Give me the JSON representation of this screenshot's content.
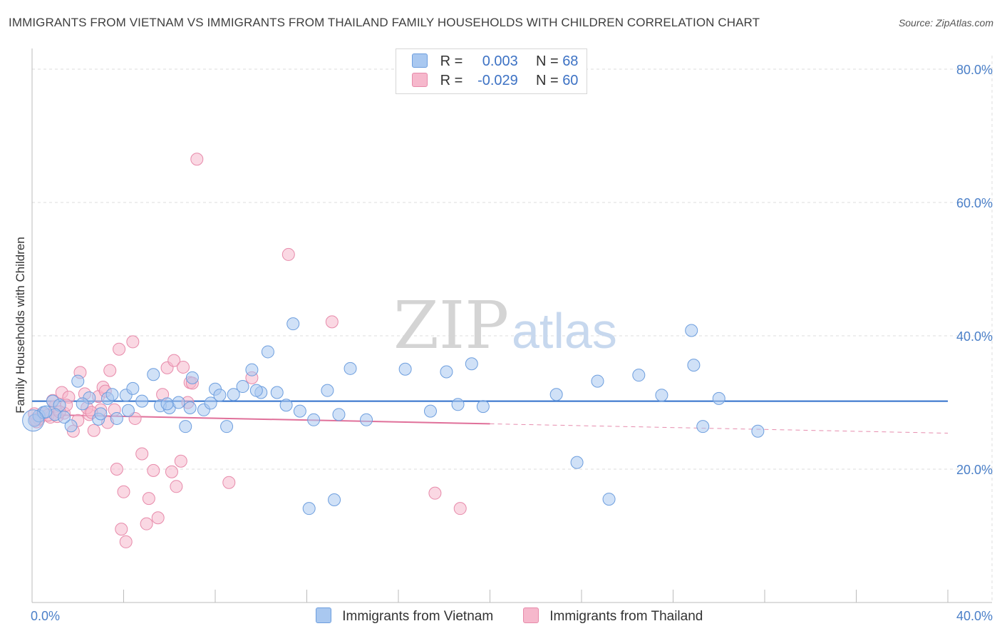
{
  "title": "IMMIGRANTS FROM VIETNAM VS IMMIGRANTS FROM THAILAND FAMILY HOUSEHOLDS WITH CHILDREN CORRELATION CHART",
  "source": "Source: ZipAtlas.com",
  "watermark": {
    "zip": "ZIP",
    "atlas": "atlas"
  },
  "legend": {
    "vietnam": {
      "r_label": "R =",
      "r_value": "0.003",
      "n_label": "N =",
      "n_value": "68"
    },
    "thailand": {
      "r_label": "R =",
      "r_value": "-0.029",
      "n_label": "N =",
      "n_value": "60"
    }
  },
  "colors": {
    "vietnam_fill": "#a9c8f0",
    "vietnam_stroke": "#6d9ede",
    "vietnam_line": "#2f6fcb",
    "thailand_fill": "#f6b8cc",
    "thailand_stroke": "#e78aaa",
    "thailand_line": "#e0709a",
    "tick_text": "#4a7fc8",
    "grid": "#dddddd"
  },
  "chart_data": {
    "type": "scatter",
    "title": "IMMIGRANTS FROM VIETNAM VS IMMIGRANTS FROM THAILAND FAMILY HOUSEHOLDS WITH CHILDREN CORRELATION CHART",
    "xlabel": "",
    "ylabel": "Family Households with Children",
    "xlim": [
      0,
      40
    ],
    "ylim": [
      0,
      80
    ],
    "x_tick_labels": [
      "0.0%",
      "40.0%"
    ],
    "y_ticks": [
      20,
      40,
      60,
      80
    ],
    "y_tick_labels": [
      "20.0%",
      "40.0%",
      "60.0%",
      "80.0%"
    ],
    "grid": true,
    "legend_position": "top-center",
    "series": [
      {
        "name": "Immigrants from Vietnam",
        "color": "#a9c8f0",
        "trend": {
          "x": [
            0,
            40
          ],
          "y": [
            30.2,
            30.2
          ]
        },
        "points": [
          [
            0.1,
            27.3
          ],
          [
            0.3,
            28.0
          ],
          [
            0.5,
            28.5
          ],
          [
            0.9,
            30.2
          ],
          [
            1.2,
            29.6
          ],
          [
            1.7,
            26.5
          ],
          [
            2.0,
            33.2
          ],
          [
            2.5,
            30.7
          ],
          [
            2.9,
            27.5
          ],
          [
            3.3,
            30.6
          ],
          [
            3.5,
            31.2
          ],
          [
            3.7,
            27.6
          ],
          [
            4.1,
            31.1
          ],
          [
            4.4,
            32.1
          ],
          [
            4.8,
            30.2
          ],
          [
            5.3,
            34.2
          ],
          [
            5.6,
            29.5
          ],
          [
            6.0,
            29.2
          ],
          [
            6.4,
            30.0
          ],
          [
            6.7,
            26.4
          ],
          [
            7.0,
            33.7
          ],
          [
            7.5,
            28.9
          ],
          [
            7.8,
            29.9
          ],
          [
            8.0,
            32.0
          ],
          [
            8.2,
            31.1
          ],
          [
            8.5,
            26.4
          ],
          [
            8.8,
            31.2
          ],
          [
            9.2,
            32.4
          ],
          [
            9.6,
            34.9
          ],
          [
            10.0,
            31.5
          ],
          [
            10.3,
            37.6
          ],
          [
            10.7,
            31.5
          ],
          [
            11.1,
            29.6
          ],
          [
            11.4,
            41.8
          ],
          [
            11.7,
            28.7
          ],
          [
            12.3,
            27.4
          ],
          [
            12.9,
            31.8
          ],
          [
            13.4,
            28.2
          ],
          [
            13.9,
            35.1
          ],
          [
            14.6,
            27.4
          ],
          [
            16.3,
            35.0
          ],
          [
            17.4,
            28.7
          ],
          [
            18.1,
            34.6
          ],
          [
            18.6,
            29.7
          ],
          [
            19.2,
            35.8
          ],
          [
            19.7,
            29.4
          ],
          [
            22.9,
            31.2
          ],
          [
            23.8,
            21.0
          ],
          [
            24.7,
            33.2
          ],
          [
            25.2,
            15.5
          ],
          [
            26.5,
            34.1
          ],
          [
            27.5,
            31.1
          ],
          [
            28.8,
            40.8
          ],
          [
            28.9,
            35.6
          ],
          [
            29.3,
            26.4
          ],
          [
            30.0,
            30.6
          ],
          [
            31.7,
            25.7
          ],
          [
            12.1,
            14.1
          ],
          [
            13.2,
            15.4
          ],
          [
            1.0,
            28.2
          ],
          [
            2.2,
            29.8
          ],
          [
            6.9,
            29.2
          ],
          [
            4.2,
            28.8
          ],
          [
            5.9,
            29.8
          ],
          [
            0.6,
            28.6
          ],
          [
            1.4,
            27.8
          ],
          [
            3.0,
            28.3
          ],
          [
            9.8,
            31.8
          ]
        ]
      },
      {
        "name": "Immigrants from Thailand",
        "color": "#f6b8cc",
        "trend": {
          "x": [
            0,
            20
          ],
          "y": [
            28.2,
            26.8
          ]
        },
        "trend_dashed": {
          "x": [
            20,
            40
          ],
          "y": [
            26.8,
            25.4
          ]
        },
        "points": [
          [
            0.1,
            28.3
          ],
          [
            0.2,
            27.1
          ],
          [
            0.4,
            28.0
          ],
          [
            0.5,
            28.3
          ],
          [
            0.8,
            27.8
          ],
          [
            1.0,
            29.4
          ],
          [
            1.3,
            31.5
          ],
          [
            1.4,
            28.4
          ],
          [
            1.6,
            30.8
          ],
          [
            1.8,
            25.7
          ],
          [
            2.0,
            27.3
          ],
          [
            2.1,
            34.5
          ],
          [
            2.3,
            31.3
          ],
          [
            2.5,
            28.2
          ],
          [
            2.7,
            25.8
          ],
          [
            2.9,
            30.9
          ],
          [
            3.0,
            28.9
          ],
          [
            3.1,
            32.3
          ],
          [
            3.3,
            27.0
          ],
          [
            3.4,
            34.8
          ],
          [
            3.6,
            28.9
          ],
          [
            3.7,
            20.0
          ],
          [
            3.8,
            38.0
          ],
          [
            3.9,
            11.0
          ],
          [
            4.0,
            16.6
          ],
          [
            4.1,
            9.1
          ],
          [
            4.4,
            39.1
          ],
          [
            4.5,
            27.6
          ],
          [
            4.8,
            22.3
          ],
          [
            5.0,
            11.8
          ],
          [
            5.1,
            15.6
          ],
          [
            5.3,
            19.8
          ],
          [
            5.5,
            12.7
          ],
          [
            5.7,
            31.2
          ],
          [
            5.9,
            35.2
          ],
          [
            6.1,
            19.6
          ],
          [
            6.2,
            36.3
          ],
          [
            6.3,
            17.4
          ],
          [
            6.5,
            21.2
          ],
          [
            6.6,
            35.3
          ],
          [
            6.8,
            30.0
          ],
          [
            6.9,
            33.0
          ],
          [
            7.0,
            32.9
          ],
          [
            7.2,
            66.5
          ],
          [
            8.6,
            18.0
          ],
          [
            9.6,
            33.7
          ],
          [
            11.2,
            52.2
          ],
          [
            13.1,
            42.1
          ],
          [
            17.6,
            16.4
          ],
          [
            18.7,
            14.1
          ],
          [
            0.3,
            27.5
          ],
          [
            0.7,
            28.1
          ],
          [
            1.1,
            27.9
          ],
          [
            1.5,
            29.6
          ],
          [
            2.4,
            29.2
          ],
          [
            2.6,
            28.5
          ],
          [
            3.2,
            31.7
          ],
          [
            0.9,
            30.3
          ],
          [
            0.15,
            27.4
          ],
          [
            1.2,
            28.6
          ]
        ]
      }
    ]
  },
  "bottom_legend": {
    "vietnam": "Immigrants from Vietnam",
    "thailand": "Immigrants from Thailand"
  }
}
